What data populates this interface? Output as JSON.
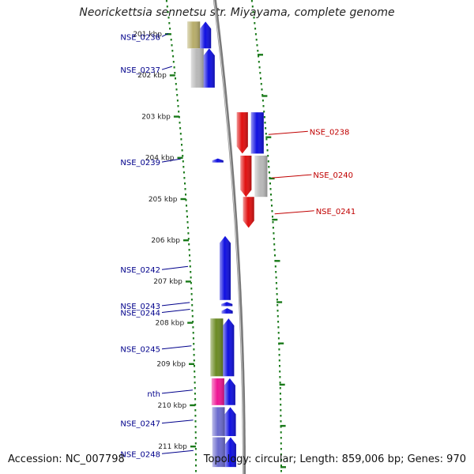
{
  "title": "Neorickettsia sennetsu str. Miyayama, complete genome",
  "accession": "Accession: NC_007798",
  "summary": "Topology: circular; Length: 859,006 bp; Genes: 970",
  "colors": {
    "forward_gene": "#1010e0",
    "reverse_gene": "#e01010",
    "backbone": "#888888",
    "tick": "#1a7a1a",
    "label_forward": "#00008b",
    "label_reverse": "#c00000"
  },
  "kbp_ticks": [
    {
      "label": "201 kbp",
      "kbp": 201
    },
    {
      "label": "202 kbp",
      "kbp": 202
    },
    {
      "label": "203 kbp",
      "kbp": 203
    },
    {
      "label": "204 kbp",
      "kbp": 204
    },
    {
      "label": "205 kbp",
      "kbp": 205
    },
    {
      "label": "206 kbp",
      "kbp": 206
    },
    {
      "label": "207 kbp",
      "kbp": 207
    },
    {
      "label": "208 kbp",
      "kbp": 208
    },
    {
      "label": "209 kbp",
      "kbp": 209
    },
    {
      "label": "210 kbp",
      "kbp": 210
    },
    {
      "label": "211 kbp",
      "kbp": 211
    }
  ],
  "genes": [
    {
      "name": "NSE_0236",
      "strand": "forward",
      "start_kbp": 200.7,
      "end_kbp": 201.35,
      "cog": "#b7ad6a"
    },
    {
      "name": "NSE_0237",
      "strand": "forward",
      "start_kbp": 201.35,
      "end_kbp": 202.3,
      "cog": "#b8b8b8"
    },
    {
      "name": "NSE_0238",
      "strand": "reverse",
      "start_kbp": 202.9,
      "end_kbp": 203.9,
      "cog": "#1010e0"
    },
    {
      "name": "NSE_0239",
      "strand": "forward",
      "start_kbp": 204.02,
      "end_kbp": 204.1,
      "cog": ""
    },
    {
      "name": "NSE_0240",
      "strand": "reverse",
      "start_kbp": 203.95,
      "end_kbp": 204.95,
      "cog": "#b8b8b8"
    },
    {
      "name": "NSE_0241",
      "strand": "reverse",
      "start_kbp": 204.95,
      "end_kbp": 205.7,
      "cog": ""
    },
    {
      "name": "NSE_0242",
      "strand": "forward",
      "start_kbp": 205.9,
      "end_kbp": 207.45,
      "cog": ""
    },
    {
      "name": "NSE_0243",
      "strand": "forward",
      "start_kbp": 207.5,
      "end_kbp": 207.6,
      "cog": ""
    },
    {
      "name": "NSE_0244",
      "strand": "forward",
      "start_kbp": 207.65,
      "end_kbp": 207.78,
      "cog": ""
    },
    {
      "name": "NSE_0245",
      "strand": "forward",
      "start_kbp": 207.9,
      "end_kbp": 209.3,
      "cog": "#6b8a23"
    },
    {
      "name": "nth",
      "strand": "forward",
      "start_kbp": 209.35,
      "end_kbp": 210.0,
      "cog": "#ee1493"
    },
    {
      "name": "NSE_0247",
      "strand": "forward",
      "start_kbp": 210.05,
      "end_kbp": 210.75,
      "cog": "#6a6acd"
    },
    {
      "name": "NSE_0248",
      "strand": "forward",
      "start_kbp": 210.78,
      "end_kbp": 211.5,
      "cog": "#6a6acd"
    }
  ]
}
